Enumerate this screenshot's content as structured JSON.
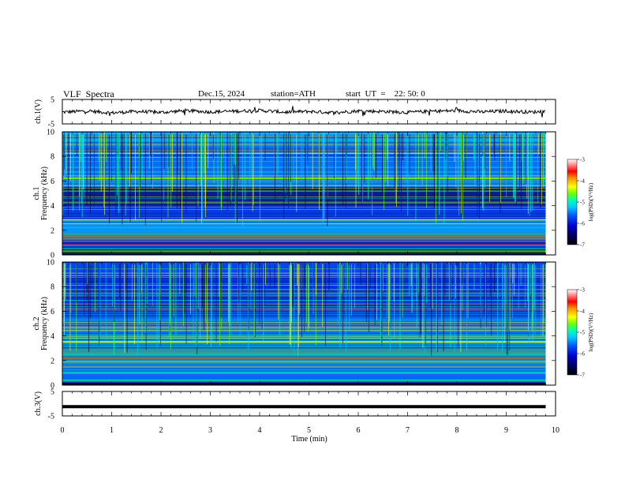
{
  "header": {
    "title": "VLF  Spectra",
    "date": "Dec.15, 2024",
    "station": "station=ATH",
    "start_ut": "start  UT  =    22: 50: 0"
  },
  "colors": {
    "frame": "#000000",
    "spectrogram_scale": [
      "#000000",
      "#00004a",
      "#0000d0",
      "#0055ff",
      "#00c8ff",
      "#00ffb0",
      "#70ff00",
      "#ffff00",
      "#ff9000",
      "#ff0000",
      "#ffffff"
    ]
  },
  "chart_data": [
    {
      "type": "line",
      "name": "ch1-waveform",
      "ylabel": "ch.1(V)",
      "ylim": [
        -5,
        5
      ],
      "yticks": [
        "5",
        "-5"
      ],
      "x": [
        0,
        0.5,
        1,
        1.5,
        2,
        2.5,
        3,
        3.5,
        4,
        4.5,
        5,
        5.5,
        6,
        6.5,
        7,
        7.5,
        8,
        8.5,
        9,
        9.5,
        9.8
      ],
      "values": [
        -0.2,
        0.3,
        -0.5,
        0.1,
        -0.3,
        0.4,
        -0.1,
        0.2,
        0.5,
        -0.2,
        0.1,
        -0.4,
        0.3,
        0.1,
        -0.3,
        0.2,
        0.4,
        -0.1,
        0.3,
        -0.2,
        0.1
      ]
    },
    {
      "type": "heatmap",
      "name": "ch1-spectrogram",
      "ylabel": "Frequency  (kHz)",
      "channel_label": "ch.1",
      "ylim": [
        0,
        10
      ],
      "yticks": [
        "0",
        "2",
        "4",
        "6",
        "8",
        "10"
      ],
      "colorbar": {
        "label": "log(PSD)(V²/Hz)",
        "ticks": [
          "-3",
          "-4",
          "-5",
          "-6",
          "-7"
        ],
        "range": [
          -7,
          -3
        ]
      }
    },
    {
      "type": "heatmap",
      "name": "ch2-spectrogram",
      "ylabel": "Frequency  (kHz)",
      "channel_label": "ch.2",
      "ylim": [
        0,
        10
      ],
      "yticks": [
        "0",
        "2",
        "4",
        "6",
        "8",
        "10"
      ],
      "colorbar": {
        "label": "log(PSD)(V²/Hz)",
        "ticks": [
          "-3",
          "-4",
          "-5",
          "-6",
          "-7"
        ],
        "range": [
          -7,
          -3
        ]
      }
    },
    {
      "type": "line",
      "name": "ch3-waveform",
      "ylabel": "ch.3(V)",
      "ylim": [
        -5,
        5
      ],
      "yticks": [
        "5",
        "-5"
      ],
      "x": [
        0,
        9.8
      ],
      "values": [
        -1.2,
        -1.2
      ]
    }
  ],
  "xaxis": {
    "label": "Time  (min)",
    "range": [
      0,
      10
    ],
    "ticks": [
      "0",
      "1",
      "2",
      "3",
      "4",
      "5",
      "6",
      "7",
      "8",
      "9",
      "10"
    ]
  }
}
